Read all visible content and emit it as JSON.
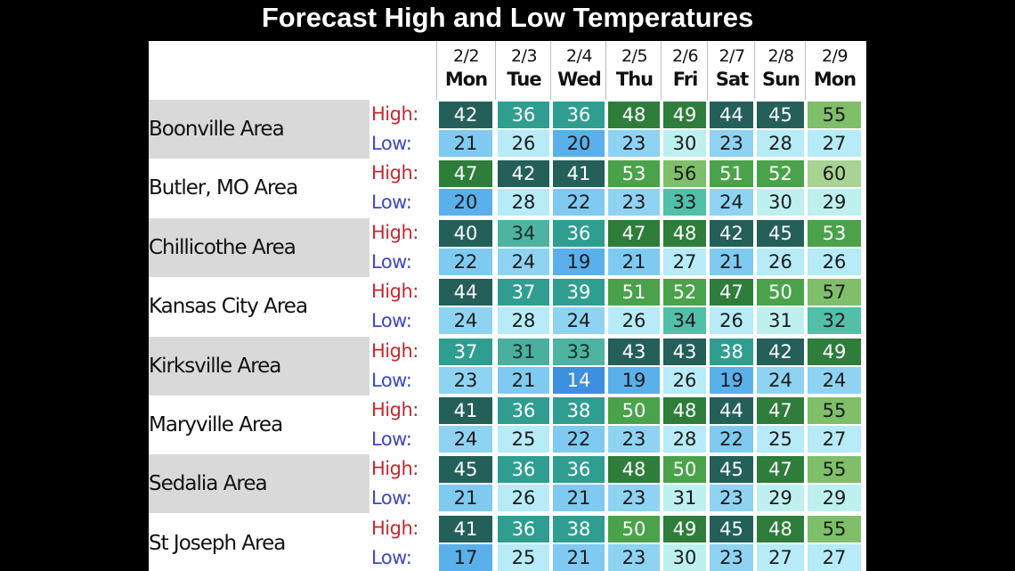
{
  "title": "Forecast High and Low Temperatures",
  "colors": {
    "high_label": "#c7282f",
    "low_label": "#3d47c9",
    "row_shade": "#d9d9d9",
    "white_row": "#ffffff"
  },
  "high_color_scale": [
    {
      "max": 31,
      "bg": "#4aaf9f",
      "fg": "#15302b"
    },
    {
      "max": 35,
      "bg": "#4fb3a1",
      "fg": "#12302a"
    },
    {
      "max": 39,
      "bg": "#2f9e91",
      "fg": "#ffffff"
    },
    {
      "max": 45,
      "bg": "#255f5a",
      "fg": "#ffffff"
    },
    {
      "max": 49,
      "bg": "#2e7d3b",
      "fg": "#ffffff"
    },
    {
      "max": 53,
      "bg": "#4aa34a",
      "fg": "#ffffff"
    },
    {
      "max": 57,
      "bg": "#7fbf6a",
      "fg": "#1b1b1b"
    },
    {
      "max": 99,
      "bg": "#a7d494",
      "fg": "#1b1b1b"
    }
  ],
  "low_color_scale": [
    {
      "max": 15,
      "bg": "#3d8fe0",
      "fg": "#ffffff"
    },
    {
      "max": 20,
      "bg": "#5ab0ea",
      "fg": "#1b1b1b"
    },
    {
      "max": 22,
      "bg": "#7fcaf0",
      "fg": "#1b1b1b"
    },
    {
      "max": 24,
      "bg": "#8fd3f3",
      "fg": "#1b1b1b"
    },
    {
      "max": 28,
      "bg": "#b6ebf7",
      "fg": "#1b1b1b"
    },
    {
      "max": 31,
      "bg": "#bff0f0",
      "fg": "#1b1b1b"
    },
    {
      "max": 99,
      "bg": "#52bfa8",
      "fg": "#1b1b1b"
    }
  ],
  "chart_data": {
    "type": "table",
    "title": "Forecast High and Low Temperatures",
    "dates": [
      "2/2",
      "2/3",
      "2/4",
      "2/5",
      "2/6",
      "2/7",
      "2/8",
      "2/9"
    ],
    "days": [
      "Mon",
      "Tue",
      "Wed",
      "Thu",
      "Fri",
      "Sat",
      "Sun",
      "Mon"
    ],
    "high_label": "High:",
    "low_label": "Low:",
    "rows": [
      {
        "area": "Boonville Area",
        "high": [
          42,
          36,
          36,
          48,
          49,
          44,
          45,
          55
        ],
        "low": [
          21,
          26,
          20,
          23,
          30,
          23,
          28,
          27
        ]
      },
      {
        "area": "Butler, MO Area",
        "high": [
          47,
          42,
          41,
          53,
          56,
          51,
          52,
          60
        ],
        "low": [
          20,
          28,
          22,
          23,
          33,
          24,
          30,
          29
        ]
      },
      {
        "area": "Chillicothe Area",
        "high": [
          40,
          34,
          36,
          47,
          48,
          42,
          45,
          53
        ],
        "low": [
          22,
          24,
          19,
          21,
          27,
          21,
          26,
          26
        ]
      },
      {
        "area": "Kansas City Area",
        "high": [
          44,
          37,
          39,
          51,
          52,
          47,
          50,
          57
        ],
        "low": [
          24,
          28,
          24,
          26,
          34,
          26,
          31,
          32
        ]
      },
      {
        "area": "Kirksville Area",
        "high": [
          37,
          31,
          33,
          43,
          43,
          38,
          42,
          49
        ],
        "low": [
          23,
          21,
          14,
          19,
          26,
          19,
          24,
          24
        ]
      },
      {
        "area": "Maryville Area",
        "high": [
          41,
          36,
          38,
          50,
          48,
          44,
          47,
          55
        ],
        "low": [
          24,
          25,
          22,
          23,
          28,
          22,
          25,
          27
        ]
      },
      {
        "area": "Sedalia Area",
        "high": [
          45,
          36,
          36,
          48,
          50,
          45,
          47,
          55
        ],
        "low": [
          21,
          26,
          21,
          23,
          31,
          23,
          29,
          29
        ]
      },
      {
        "area": "St Joseph Area",
        "high": [
          41,
          36,
          38,
          50,
          49,
          45,
          48,
          55
        ],
        "low": [
          17,
          25,
          21,
          23,
          30,
          23,
          27,
          27
        ]
      }
    ]
  }
}
